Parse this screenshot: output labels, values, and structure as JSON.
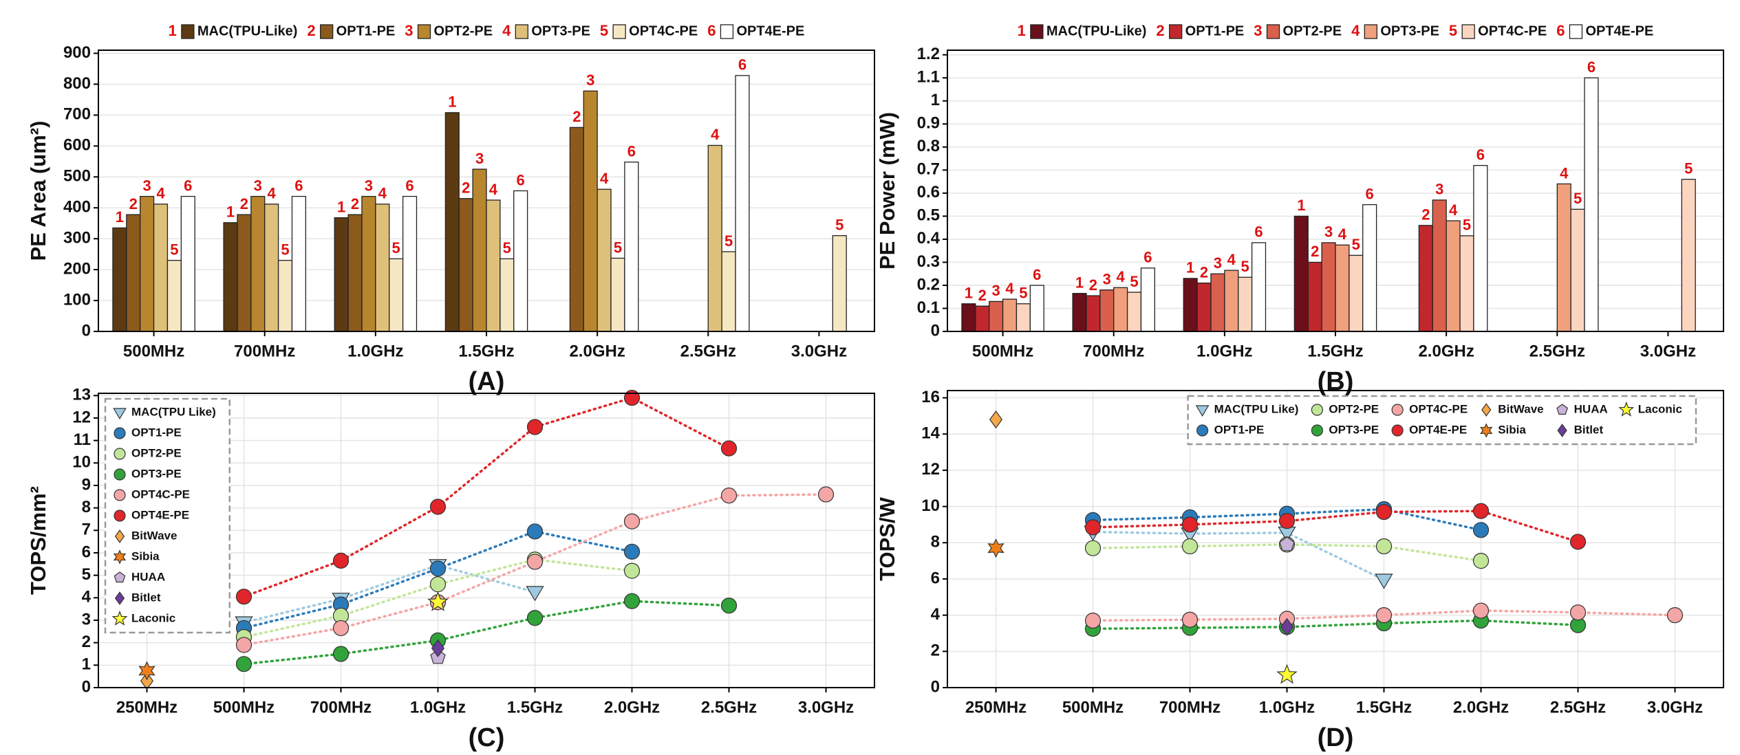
{
  "chart_data": [
    {
      "type": "bar",
      "caption": "(A)",
      "y_label": "PE Area (um²)",
      "legend": "top",
      "grid": true,
      "categories": [
        "500MHz",
        "700MHz",
        "1.0GHz",
        "1.5GHz",
        "2.0GHz",
        "2.5GHz",
        "3.0GHz"
      ],
      "ylim": [
        0,
        910
      ],
      "yticks": [
        0,
        100,
        200,
        300,
        400,
        500,
        600,
        700,
        800,
        900
      ],
      "series": [
        {
          "name": "MAC(TPU-Like)",
          "label": "1",
          "color": "#5c3a12",
          "values": [
            335,
            352,
            368,
            708,
            null,
            null,
            null
          ]
        },
        {
          "name": "OPT1-PE",
          "label": "2",
          "color": "#8b5a1c",
          "values": [
            378,
            378,
            378,
            430,
            660,
            null,
            null
          ]
        },
        {
          "name": "OPT2-PE",
          "label": "3",
          "color": "#b8862f",
          "values": [
            437,
            437,
            437,
            525,
            778,
            null,
            null
          ]
        },
        {
          "name": "OPT3-PE",
          "label": "4",
          "color": "#dfc07a",
          "values": [
            412,
            412,
            412,
            425,
            460,
            602,
            null
          ]
        },
        {
          "name": "OPT4C-PE",
          "label": "5",
          "color": "#f6e7c3",
          "values": [
            230,
            230,
            235,
            235,
            237,
            258,
            310
          ]
        },
        {
          "name": "OPT4E-PE",
          "label": "6",
          "color": "#ffffff",
          "values": [
            437,
            437,
            437,
            455,
            548,
            828,
            null
          ]
        }
      ]
    },
    {
      "type": "bar",
      "caption": "(B)",
      "y_label": "PE Power (mW)",
      "legend": "top",
      "grid": true,
      "categories": [
        "500MHz",
        "700MHz",
        "1.0GHz",
        "1.5GHz",
        "2.0GHz",
        "2.5GHz",
        "3.0GHz"
      ],
      "ylim": [
        0,
        1.22
      ],
      "yticks": [
        0,
        0.1,
        0.2,
        0.3,
        0.4,
        0.5,
        0.6,
        0.7,
        0.8,
        0.9,
        1,
        1.1,
        1.2
      ],
      "series": [
        {
          "name": "MAC(TPU-Like)",
          "label": "1",
          "color": "#6b0f1a",
          "values": [
            0.12,
            0.165,
            0.23,
            0.5,
            null,
            null,
            null
          ]
        },
        {
          "name": "OPT1-PE",
          "label": "2",
          "color": "#c0282d",
          "values": [
            0.11,
            0.155,
            0.21,
            0.3,
            0.46,
            null,
            null
          ]
        },
        {
          "name": "OPT2-PE",
          "label": "3",
          "color": "#d9604c",
          "values": [
            0.13,
            0.18,
            0.25,
            0.385,
            0.57,
            null,
            null
          ]
        },
        {
          "name": "OPT3-PE",
          "label": "4",
          "color": "#f0a07c",
          "values": [
            0.14,
            0.19,
            0.265,
            0.375,
            0.48,
            0.64,
            null
          ]
        },
        {
          "name": "OPT4C-PE",
          "label": "5",
          "color": "#fbd5bf",
          "values": [
            0.12,
            0.17,
            0.235,
            0.33,
            0.415,
            0.53,
            0.66
          ]
        },
        {
          "name": "OPT4E-PE",
          "label": "6",
          "color": "#ffffff",
          "values": [
            0.2,
            0.275,
            0.385,
            0.55,
            0.72,
            1.1,
            null
          ]
        }
      ]
    },
    {
      "type": "line",
      "caption": "(C)",
      "y_label": "TOPS/mm²",
      "legend": "upper left",
      "legend_rows": 11,
      "grid": true,
      "categories": [
        "250MHz",
        "500MHz",
        "700MHz",
        "1.0GHz",
        "1.5GHz",
        "2.0GHz",
        "2.5GHz",
        "3.0GHz"
      ],
      "ylim": [
        0,
        13.1
      ],
      "yticks": [
        0,
        1,
        2,
        3,
        4,
        5,
        6,
        7,
        8,
        9,
        10,
        11,
        12,
        13
      ],
      "series": [
        {
          "name": "MAC(TPU Like)",
          "color": "#9ecae1",
          "marker": "triangle-down",
          "linestyle": "dotted",
          "values": [
            null,
            2.9,
            3.95,
            5.45,
            4.25,
            null,
            null,
            null
          ]
        },
        {
          "name": "OPT1-PE",
          "color": "#2b7bba",
          "marker": "circle",
          "linestyle": "dotted",
          "values": [
            null,
            2.65,
            3.7,
            5.3,
            6.95,
            6.05,
            null,
            null
          ]
        },
        {
          "name": "OPT2-PE",
          "color": "#c2e699",
          "marker": "circle",
          "linestyle": "dotted",
          "values": [
            null,
            2.25,
            3.2,
            4.6,
            5.7,
            5.2,
            null,
            null
          ]
        },
        {
          "name": "OPT3-PE",
          "color": "#31a33a",
          "marker": "circle",
          "linestyle": "dotted",
          "values": [
            null,
            1.05,
            1.5,
            2.1,
            3.1,
            3.85,
            3.65,
            null
          ]
        },
        {
          "name": "OPT4C-PE",
          "color": "#f4a6a6",
          "marker": "circle",
          "linestyle": "dotted",
          "values": [
            null,
            1.9,
            2.65,
            3.8,
            5.6,
            7.4,
            8.55,
            8.6
          ]
        },
        {
          "name": "OPT4E-PE",
          "color": "#e0262a",
          "marker": "circle",
          "linestyle": "dotted",
          "values": [
            null,
            4.05,
            5.65,
            8.05,
            11.6,
            12.9,
            10.65,
            null
          ]
        },
        {
          "name": "BitWave",
          "color": "#f4a64a",
          "marker": "diamond",
          "values": [
            0.3,
            null,
            null,
            null,
            null,
            null,
            null,
            null
          ]
        },
        {
          "name": "Sibia",
          "color": "#f07f1a",
          "marker": "star6",
          "values": [
            0.75,
            null,
            null,
            null,
            null,
            null,
            null,
            null
          ]
        },
        {
          "name": "HUAA",
          "color": "#c9b3d9",
          "marker": "pentagon",
          "values": [
            null,
            null,
            null,
            1.35,
            null,
            null,
            null,
            null
          ]
        },
        {
          "name": "Bitlet",
          "color": "#6a3d9a",
          "marker": "diamond",
          "values": [
            null,
            null,
            null,
            1.75,
            null,
            null,
            null,
            null
          ]
        },
        {
          "name": "Laconic",
          "color": "#ffff33",
          "marker": "star",
          "values": [
            null,
            null,
            null,
            3.8,
            null,
            null,
            null,
            null
          ]
        }
      ]
    },
    {
      "type": "line",
      "caption": "(D)",
      "y_label": "TOPS/W",
      "legend": "upper right",
      "legend_rows": 2,
      "grid": true,
      "categories": [
        "250MHz",
        "500MHz",
        "700MHz",
        "1.0GHz",
        "1.5GHz",
        "2.0GHz",
        "2.5GHz",
        "3.0GHz"
      ],
      "ylim": [
        0,
        16.4
      ],
      "yticks": [
        0,
        2,
        4,
        6,
        8,
        10,
        12,
        14,
        16
      ],
      "series": [
        {
          "name": "MAC(TPU Like)",
          "color": "#9ecae1",
          "marker": "triangle-down",
          "linestyle": "dotted",
          "values": [
            null,
            8.6,
            8.5,
            8.55,
            5.95,
            null,
            null,
            null
          ]
        },
        {
          "name": "OPT1-PE",
          "color": "#2b7bba",
          "marker": "circle",
          "linestyle": "dotted",
          "values": [
            null,
            9.25,
            9.4,
            9.6,
            9.85,
            8.7,
            null,
            null
          ]
        },
        {
          "name": "OPT2-PE",
          "color": "#c2e699",
          "marker": "circle",
          "linestyle": "dotted",
          "values": [
            null,
            7.7,
            7.8,
            7.9,
            7.8,
            7.0,
            null,
            null
          ]
        },
        {
          "name": "OPT3-PE",
          "color": "#31a33a",
          "marker": "circle",
          "linestyle": "dotted",
          "values": [
            null,
            3.25,
            3.3,
            3.35,
            3.55,
            3.7,
            3.45,
            null
          ]
        },
        {
          "name": "OPT4C-PE",
          "color": "#f4a6a6",
          "marker": "circle",
          "linestyle": "dotted",
          "values": [
            null,
            3.7,
            3.75,
            3.8,
            4.0,
            4.25,
            4.15,
            4.0
          ]
        },
        {
          "name": "OPT4E-PE",
          "color": "#e0262a",
          "marker": "circle",
          "linestyle": "dotted",
          "values": [
            null,
            8.85,
            9.0,
            9.2,
            9.7,
            9.75,
            8.05,
            null
          ]
        },
        {
          "name": "BitWave",
          "color": "#f4a64a",
          "marker": "diamond",
          "values": [
            14.8,
            null,
            null,
            null,
            null,
            null,
            null,
            null
          ]
        },
        {
          "name": "Sibia",
          "color": "#f07f1a",
          "marker": "star6",
          "values": [
            7.7,
            null,
            null,
            null,
            null,
            null,
            null,
            null
          ]
        },
        {
          "name": "HUAA",
          "color": "#c9b3d9",
          "marker": "pentagon",
          "values": [
            null,
            null,
            null,
            7.9,
            null,
            null,
            null,
            null
          ]
        },
        {
          "name": "Bitlet",
          "color": "#6a3d9a",
          "marker": "diamond",
          "values": [
            null,
            null,
            null,
            3.35,
            null,
            null,
            null,
            null
          ]
        },
        {
          "name": "Laconic",
          "color": "#ffff33",
          "marker": "star",
          "values": [
            null,
            null,
            null,
            0.7,
            null,
            null,
            null,
            null
          ]
        }
      ]
    }
  ]
}
